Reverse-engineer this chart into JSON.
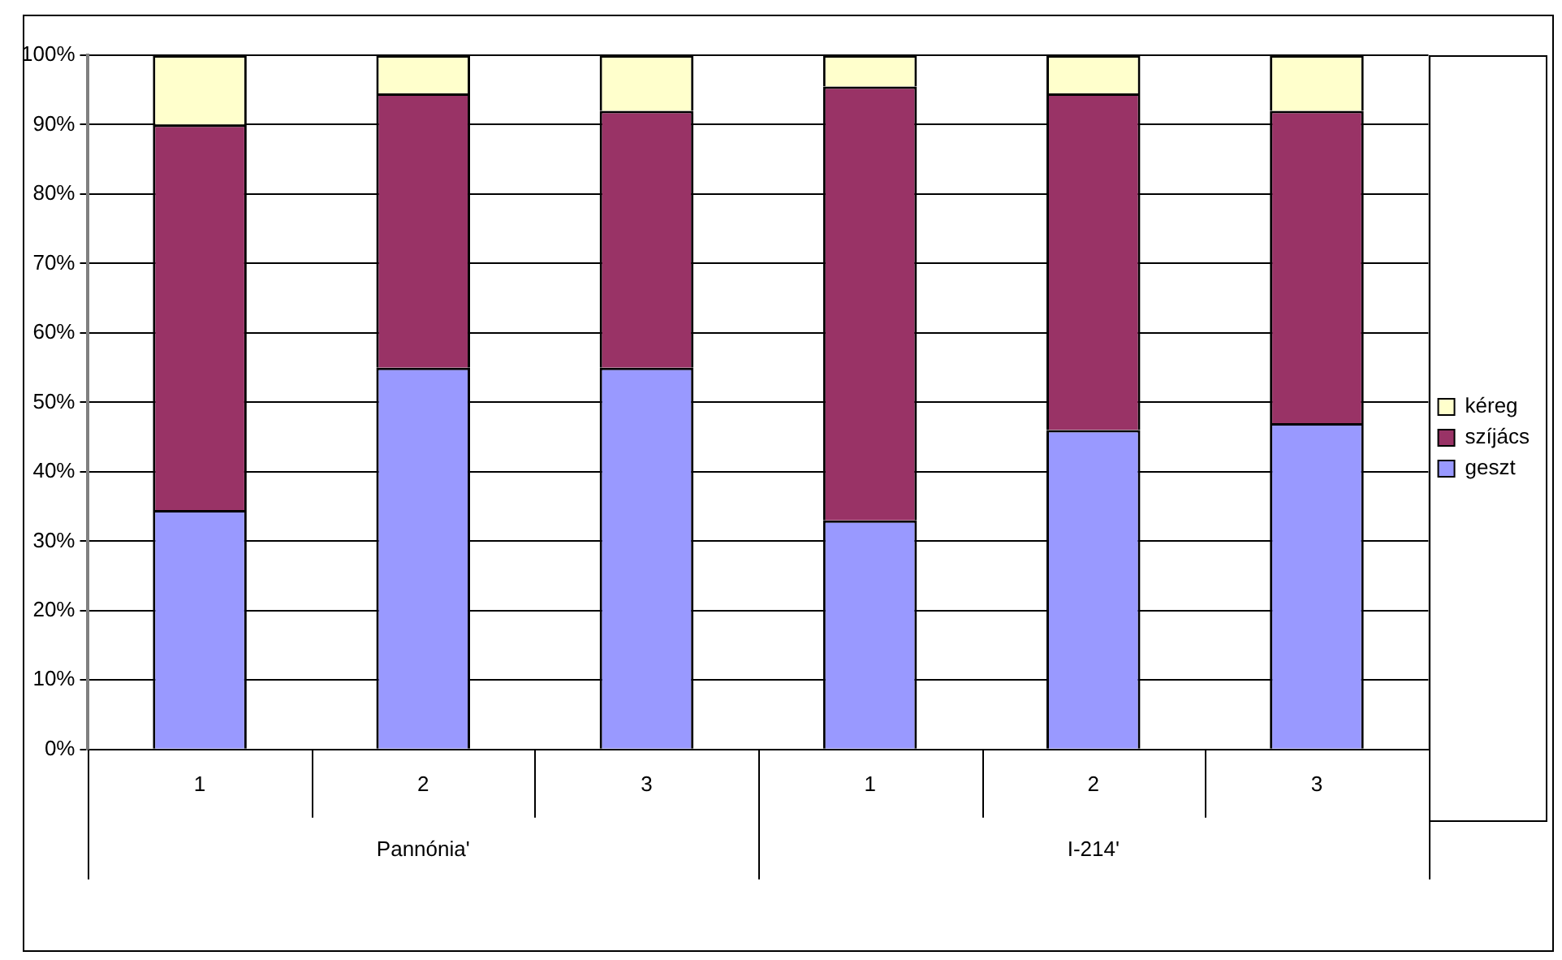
{
  "chart_data": {
    "type": "bar",
    "stacked": true,
    "categories": [
      "1",
      "2",
      "3",
      "1",
      "2",
      "3"
    ],
    "series": [
      {
        "name": "geszt",
        "color": "#9999ff",
        "values": [
          34.5,
          55,
          55,
          33,
          46,
          47
        ]
      },
      {
        "name": "szíjács",
        "color": "#993366",
        "values": [
          55.5,
          39.5,
          37,
          62.5,
          48.5,
          45
        ]
      },
      {
        "name": "kéreg",
        "color": "#ffffcc",
        "values": [
          10,
          5.5,
          8,
          4.5,
          5.5,
          8
        ]
      }
    ],
    "ylim": [
      0,
      100
    ],
    "yticks": [
      {
        "value": 0,
        "label": "0%"
      },
      {
        "value": 10,
        "label": "10%"
      },
      {
        "value": 20,
        "label": "20%"
      },
      {
        "value": 30,
        "label": "30%"
      },
      {
        "value": 40,
        "label": "40%"
      },
      {
        "value": 50,
        "label": "50%"
      },
      {
        "value": 60,
        "label": "60%"
      },
      {
        "value": 70,
        "label": "70%"
      },
      {
        "value": 80,
        "label": "80%"
      },
      {
        "value": 90,
        "label": "90%"
      },
      {
        "value": 100,
        "label": "100%"
      }
    ],
    "grid": "y",
    "legend": "right",
    "annotations": [
      "Pannónia'",
      "I-214'"
    ]
  }
}
